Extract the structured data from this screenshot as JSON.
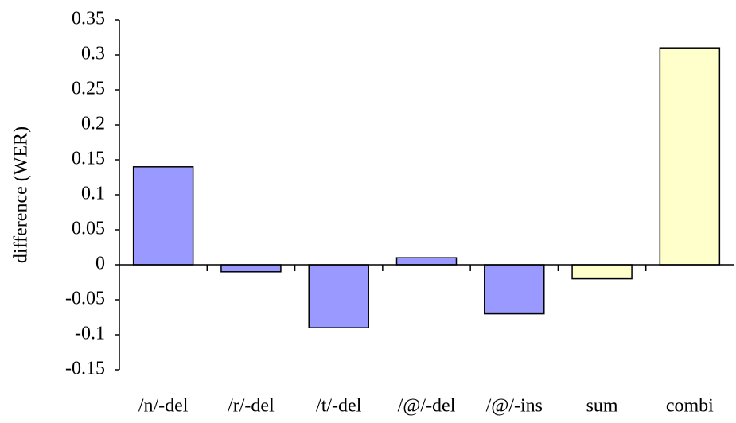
{
  "chart_data": {
    "type": "bar",
    "y_label": "difference (WER)",
    "categories": [
      "/n/-del",
      "/r/-del",
      "/t/-del",
      "/@/-del",
      "/@/-ins",
      "sum",
      "combi"
    ],
    "values": [
      0.14,
      -0.01,
      -0.09,
      0.01,
      -0.07,
      -0.02,
      0.31
    ],
    "colors": [
      "#9999ff",
      "#9999ff",
      "#9999ff",
      "#9999ff",
      "#9999ff",
      "#ffffcc",
      "#ffffcc"
    ],
    "ylim": [
      -0.15,
      0.35
    ],
    "yticks": [
      -0.15,
      -0.1,
      -0.05,
      0,
      0.05,
      0.1,
      0.15,
      0.2,
      0.25,
      0.3,
      0.35
    ],
    "grid": false
  }
}
